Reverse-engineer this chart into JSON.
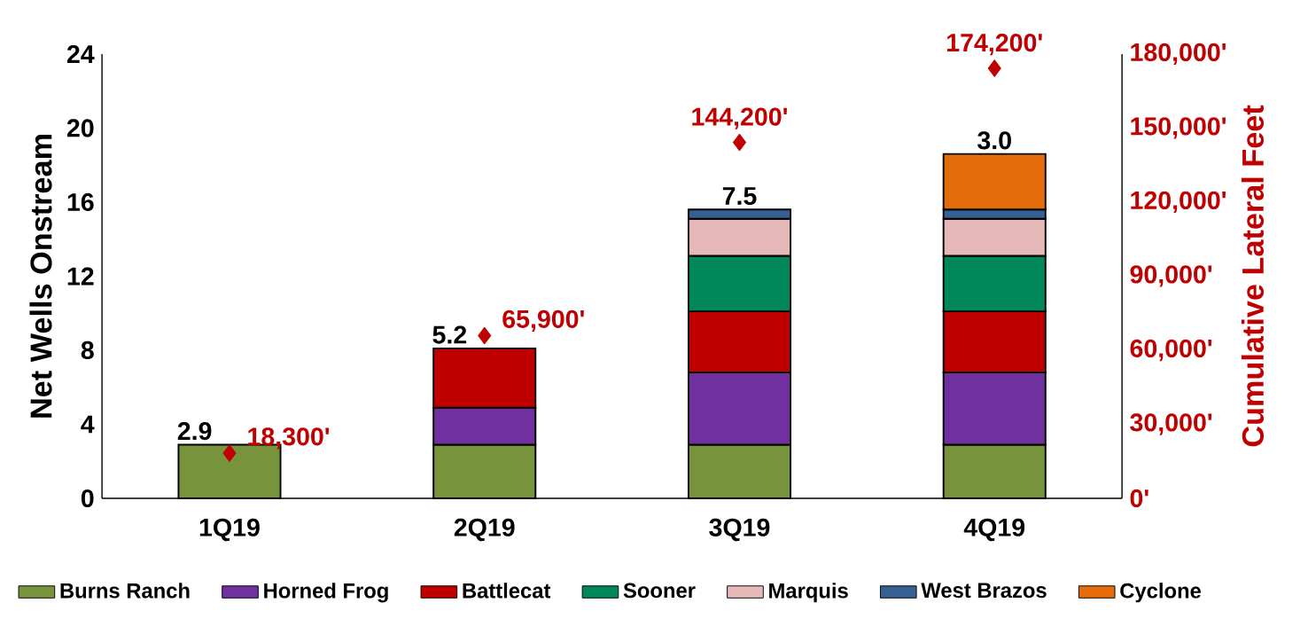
{
  "chart_data": {
    "type": "bar",
    "stacked": true,
    "legend": "bottom",
    "categories": [
      "1Q19",
      "2Q19",
      "3Q19",
      "4Q19"
    ],
    "ylabel": "Net Wells Onstream",
    "y2label": "Cumulative Lateral Feet",
    "ylim": [
      0,
      24
    ],
    "yticks": [
      0,
      4,
      8,
      12,
      16,
      20,
      24
    ],
    "y2lim": [
      0,
      180000
    ],
    "y2ticks": [
      {
        "value": 0,
        "label": "0'"
      },
      {
        "value": 30000,
        "label": "30,000'"
      },
      {
        "value": 60000,
        "label": "60,000'"
      },
      {
        "value": 90000,
        "label": "90,000'"
      },
      {
        "value": 120000,
        "label": "120,000'"
      },
      {
        "value": 150000,
        "label": "150,000'"
      },
      {
        "value": 180000,
        "label": "180,000'"
      }
    ],
    "series": [
      {
        "name": "Burns Ranch",
        "color": "#77933c",
        "values": [
          2.9,
          2.9,
          2.9,
          2.9
        ]
      },
      {
        "name": "Horned Frog",
        "color": "#7030a0",
        "values": [
          null,
          2.0,
          3.9,
          3.9
        ]
      },
      {
        "name": "Battlecat",
        "color": "#c00000",
        "values": [
          null,
          3.2,
          3.3,
          3.3
        ]
      },
      {
        "name": "Sooner",
        "color": "#00875a",
        "values": [
          null,
          null,
          3.0,
          3.0
        ]
      },
      {
        "name": "Marquis",
        "color": "#e6b9b8",
        "values": [
          null,
          null,
          2.0,
          2.0
        ]
      },
      {
        "name": "West Brazos",
        "color": "#376092",
        "values": [
          null,
          null,
          0.5,
          0.5
        ]
      },
      {
        "name": "Cyclone",
        "color": "#e46c0a",
        "values": [
          null,
          null,
          null,
          3.0
        ]
      },
      {
        "type": "scatter",
        "axis": "y2",
        "marker": "diamond",
        "color": "#c00000",
        "values": [
          18300,
          65900,
          144200,
          174200
        ],
        "value_labels": [
          "18,300'",
          "65,900'",
          "144,200'",
          "174,200'"
        ]
      }
    ],
    "annotations": [
      {
        "text": "2.9",
        "x": "1Q19",
        "y": 2.9
      },
      {
        "text": "5.2",
        "x": "2Q19",
        "y": 8.1
      },
      {
        "text": "7.5",
        "x": "3Q19",
        "y": 15.6
      },
      {
        "text": "3.0",
        "x": "4Q19",
        "y": 18.6
      }
    ]
  }
}
